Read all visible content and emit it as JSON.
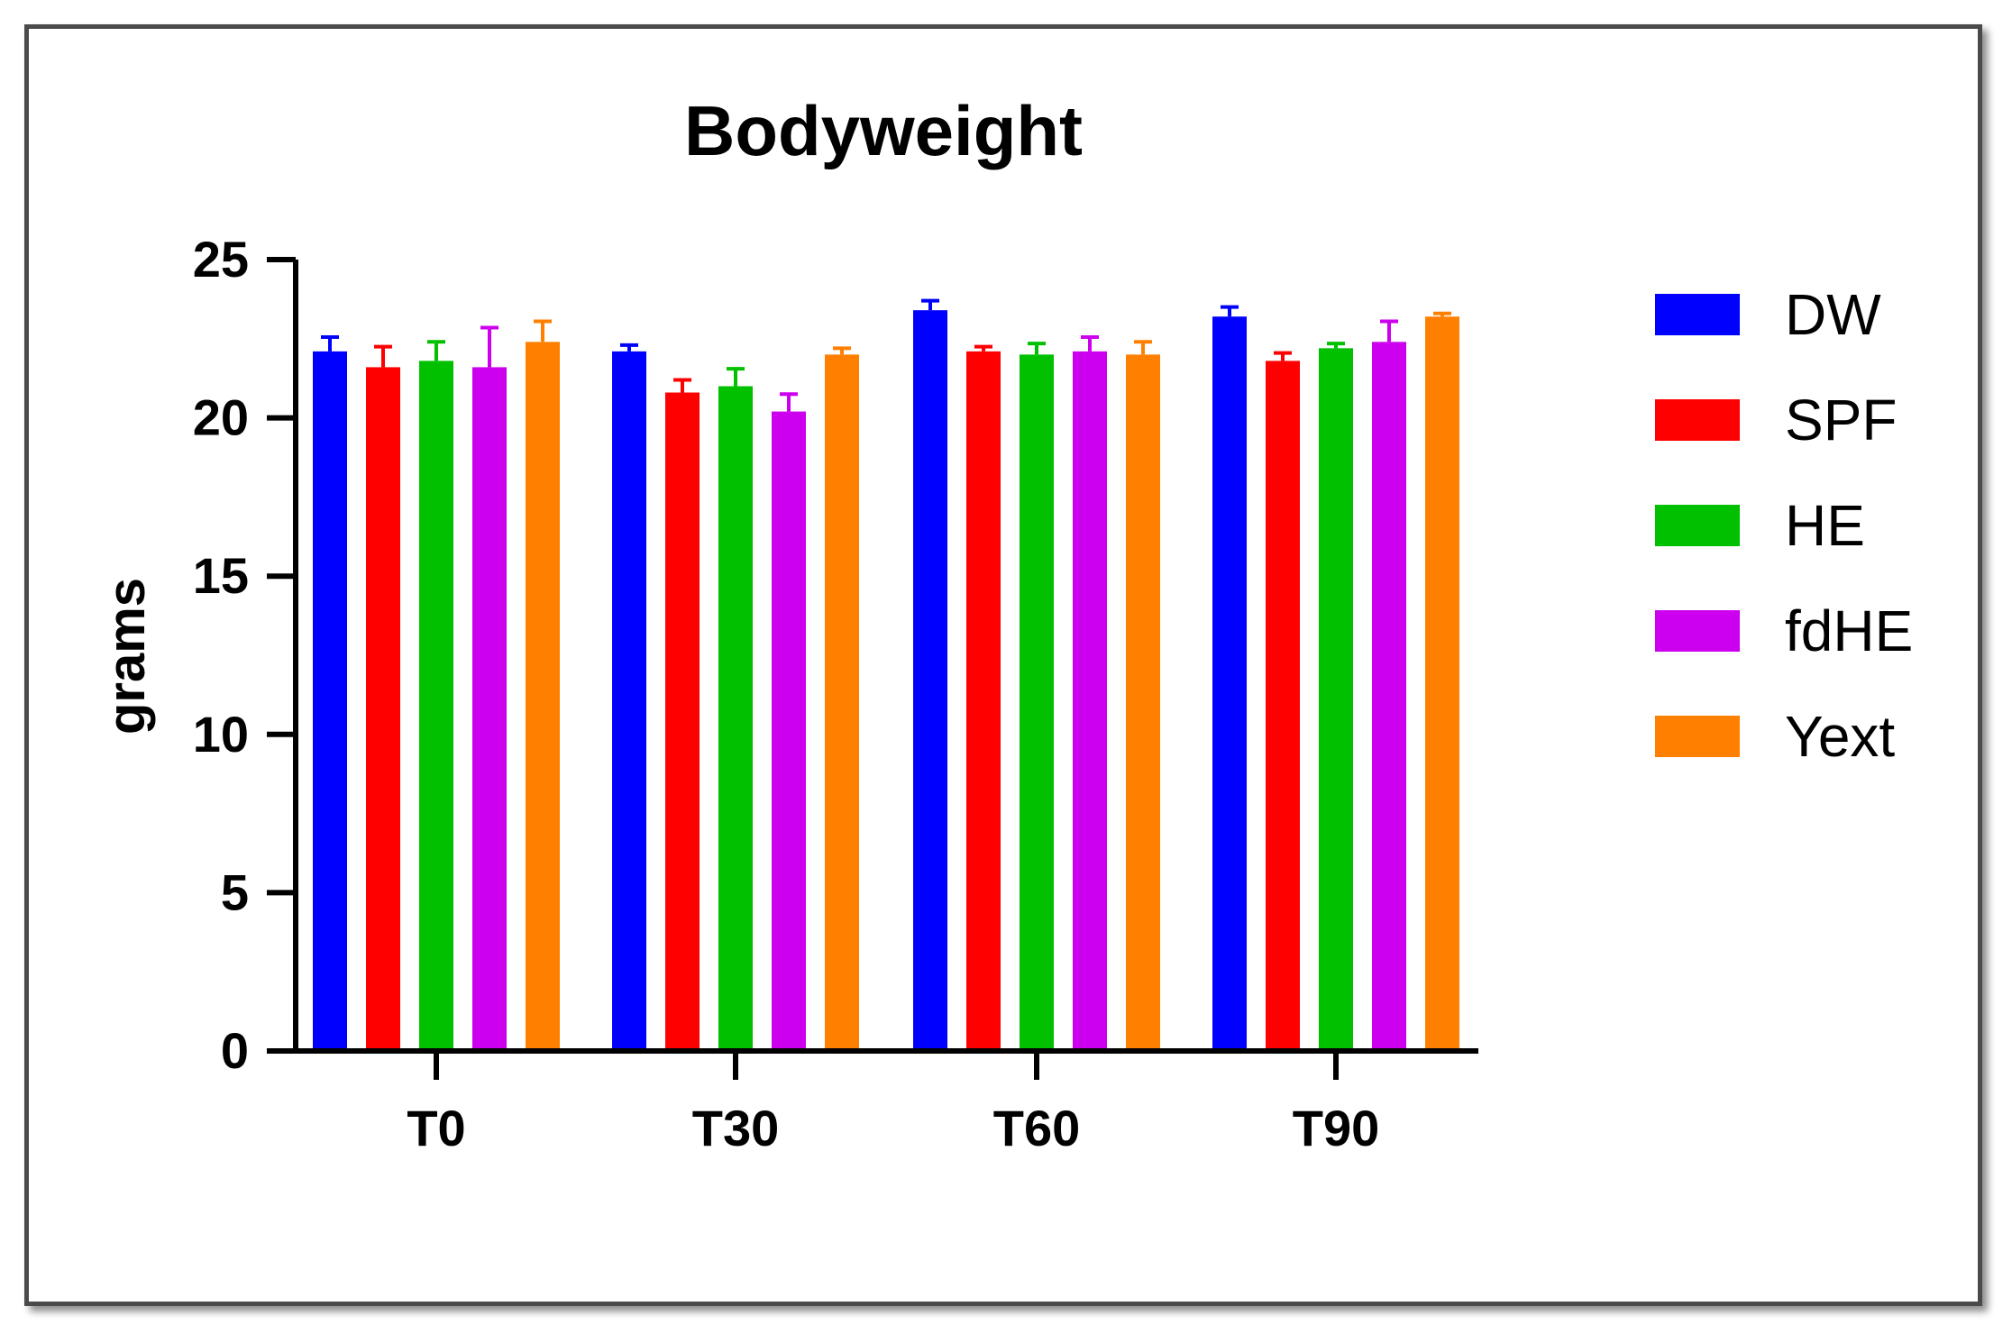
{
  "chart_data": {
    "type": "bar",
    "title": "Bodyweight",
    "xlabel": "",
    "ylabel": "grams",
    "ylim": [
      0,
      25
    ],
    "yticks": [
      "0",
      "5",
      "10",
      "15",
      "20",
      "25"
    ],
    "categories": [
      "T0",
      "T30",
      "T60",
      "T90"
    ],
    "grid": false,
    "legend_position": "right",
    "error_bars": true,
    "series": [
      {
        "name": "DW",
        "color": "#0000ff",
        "values": [
          22.1,
          22.1,
          23.4,
          23.2
        ],
        "errors": [
          0.45,
          0.2,
          0.3,
          0.3
        ]
      },
      {
        "name": "SPF",
        "color": "#ff0000",
        "values": [
          21.6,
          20.8,
          22.1,
          21.8
        ],
        "errors": [
          0.65,
          0.4,
          0.15,
          0.25
        ]
      },
      {
        "name": "HE",
        "color": "#00c000",
        "values": [
          21.8,
          21.0,
          22.0,
          22.2
        ],
        "errors": [
          0.6,
          0.55,
          0.35,
          0.15
        ]
      },
      {
        "name": "fdHE",
        "color": "#cc00ee",
        "values": [
          21.6,
          20.2,
          22.1,
          22.4
        ],
        "errors": [
          1.25,
          0.55,
          0.45,
          0.65
        ]
      },
      {
        "name": "Yext",
        "color": "#ff8000",
        "values": [
          22.4,
          22.0,
          22.0,
          23.2
        ],
        "errors": [
          0.65,
          0.2,
          0.4,
          0.1
        ]
      }
    ]
  }
}
